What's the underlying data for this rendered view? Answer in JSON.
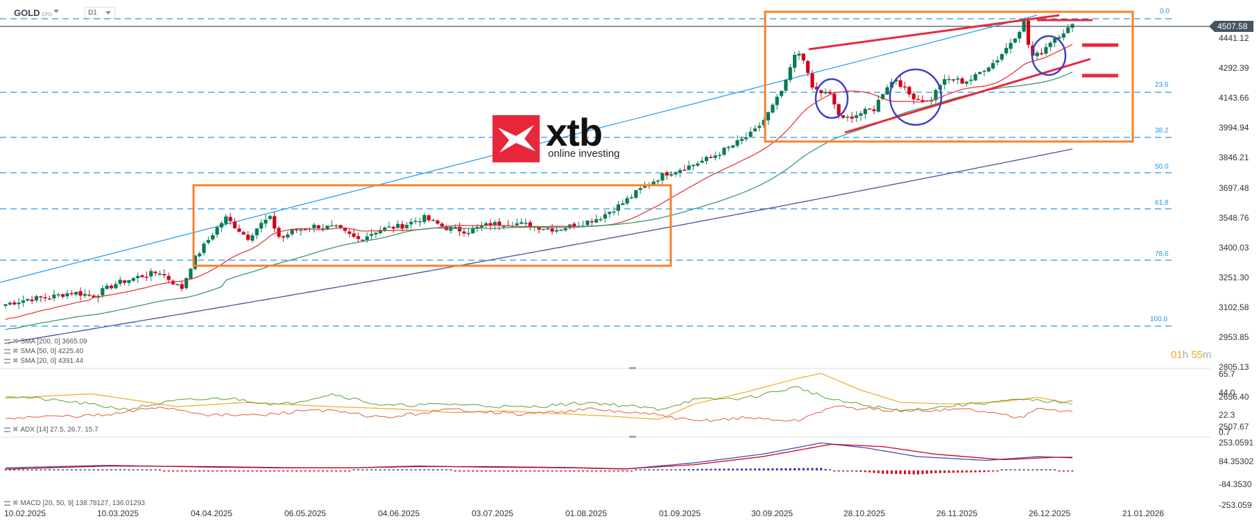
{
  "header": {
    "symbol": "GOLD",
    "symbol_type": "CFD",
    "timeframe": "D1"
  },
  "price": {
    "current": "4507.58",
    "axis_ticks": [
      "4441.12",
      "4292.39",
      "4143.66",
      "3994.94",
      "3846.21",
      "3697.48",
      "3548.76",
      "3400.03",
      "3251.30",
      "3102.58",
      "2953.85",
      "2805.13",
      "2656.40",
      "2507.67"
    ]
  },
  "fibonacci": {
    "levels": [
      "0.0",
      "23.6",
      "38.2",
      "50.0",
      "61.8",
      "78.6",
      "100.0"
    ]
  },
  "legends": {
    "sma200": "SMA [200, 0] 3665.09",
    "sma50": "SMA [50, 0] 4225.40",
    "sma20": "SMA [20, 0] 4391.44",
    "adx": "ADX [14] 27.5, 26.7, 15.7",
    "macd": "MACD [20, 50, 9] 138.78127, 136.01293"
  },
  "adx_axis": [
    "65.7",
    "44.0",
    "22.3",
    "0.7"
  ],
  "macd_axis": [
    "253.0591",
    "84.35302",
    "-84.3530",
    "-253.059"
  ],
  "timer": {
    "hours": "01",
    "h": "h",
    "minutes": "55",
    "m": "m"
  },
  "dates": [
    "10.02.2025",
    "10.03.2025",
    "04.04.2025",
    "06.05.2025",
    "04.06.2025",
    "03.07.2025",
    "01.08.2025",
    "01.09.2025",
    "30.09.2025",
    "28.10.2025",
    "26.11.2025",
    "26.12.2025",
    "21.01.2026"
  ],
  "logo": {
    "brand": "xtb",
    "tagline": "online investing",
    "color": "#e8283a"
  },
  "colors": {
    "up": "#0b7a55",
    "down": "#d0021b",
    "fib": "#2196f3",
    "box": "#f5822a",
    "trendline": "#e8283a",
    "circle": "#3b3fc4",
    "sma20": "#e53935",
    "sma50": "#3a9a6a",
    "sma200": "#4a4fa0"
  },
  "chart_data": {
    "type": "candlestick",
    "title": "GOLD CFD D1",
    "x_range": [
      "10.02.2025",
      "21.01.2026"
    ],
    "ylim": [
      2507.67,
      4590
    ],
    "last_price": 4507.58,
    "fib_retracement": {
      "0.0": 4555,
      "23.6": 4140,
      "38.2": 3845,
      "50.0": 3690,
      "61.8": 3440,
      "78.6": 3150,
      "100.0": 2790
    },
    "approx_closes": {
      "10.02.2025": 2900,
      "10.03.2025": 2920,
      "04.04.2025": 3050,
      "22.04.2025": 3400,
      "06.05.2025": 3330,
      "04.06.2025": 3360,
      "03.07.2025": 3340,
      "01.08.2025": 3360,
      "01.09.2025": 3530,
      "30.09.2025": 3860,
      "20.10.2025": 4350,
      "28.10.2025": 3970,
      "26.11.2025": 4160,
      "20.12.2025": 4480,
      "26.12.2025": 4530,
      "02.01.2026": 4507.58
    },
    "indicators": {
      "SMA200": 3665.09,
      "SMA50": 4225.4,
      "SMA20": 4391.44,
      "ADX14": [
        27.5,
        26.7,
        15.7
      ],
      "MACD_20_50_9": [
        138.78127,
        136.01293
      ]
    },
    "annotations": [
      "consolidation box Apr-Aug 2025",
      "rising wedge box Oct-Dec 2025",
      "3 circled pullbacks",
      "upper/lower trendlines",
      "horizontal resistance lines"
    ]
  }
}
